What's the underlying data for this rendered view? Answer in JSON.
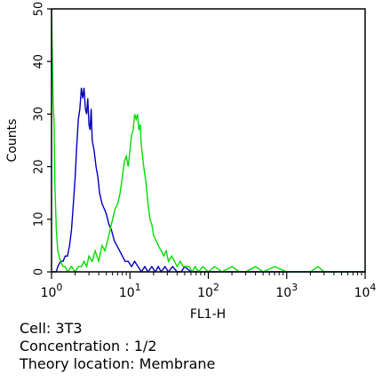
{
  "chart_data": {
    "type": "line",
    "xlabel": "FL1-H",
    "ylabel": "Counts",
    "x_scale": "log",
    "xlim": [
      1,
      10000
    ],
    "ylim": [
      0,
      50
    ],
    "grid": false,
    "x_ticks": [
      {
        "base": "10",
        "exp": "0",
        "value": 1
      },
      {
        "base": "10",
        "exp": "1",
        "value": 10
      },
      {
        "base": "10",
        "exp": "2",
        "value": 100
      },
      {
        "base": "10",
        "exp": "3",
        "value": 1000
      },
      {
        "base": "10",
        "exp": "4",
        "value": 10000
      }
    ],
    "y_ticks": [
      "0",
      "10",
      "20",
      "30",
      "40",
      "50"
    ],
    "series": [
      {
        "color": "#0000bb",
        "x": [
          1.0,
          1.05,
          1.1,
          1.15,
          1.2,
          1.3,
          1.4,
          1.5,
          1.6,
          1.7,
          1.8,
          1.9,
          2.0,
          2.1,
          2.2,
          2.3,
          2.4,
          2.5,
          2.6,
          2.7,
          2.8,
          2.9,
          3.0,
          3.1,
          3.2,
          3.3,
          3.5,
          3.7,
          3.9,
          4.1,
          4.4,
          4.7,
          5.0,
          5.4,
          5.8,
          6.3,
          6.8,
          7.4,
          8.0,
          8.7,
          9.5,
          10.5,
          11.5,
          12.7,
          14.0,
          15.5,
          17,
          19,
          21,
          23,
          25,
          28,
          31,
          35,
          40,
          45,
          50,
          60,
          70,
          80,
          90,
          100,
          120,
          140,
          160,
          180,
          200,
          250,
          300,
          400,
          500,
          700,
          1000,
          1500,
          2000,
          3000,
          5000,
          10000
        ],
        "y": [
          0,
          0,
          0,
          0,
          1,
          2,
          2,
          3,
          3,
          5,
          8,
          13,
          18,
          24,
          29,
          31,
          35,
          33,
          35,
          31,
          30,
          33,
          28,
          27,
          31,
          25,
          23,
          20,
          18,
          15,
          13,
          12,
          11,
          9,
          8,
          6,
          5,
          4,
          3,
          2,
          2,
          1,
          2,
          1,
          0,
          1,
          0,
          1,
          0,
          1,
          0,
          1,
          0,
          1,
          0,
          0,
          1,
          0,
          0,
          0,
          0,
          0,
          0,
          0,
          0,
          0,
          0,
          0,
          0,
          0,
          0,
          0,
          0,
          0,
          0,
          0,
          0,
          0
        ]
      },
      {
        "color": "#00dd00",
        "x": [
          1.0,
          1.02,
          1.05,
          1.08,
          1.1,
          1.15,
          1.2,
          1.3,
          1.4,
          1.5,
          1.6,
          1.8,
          2.0,
          2.2,
          2.4,
          2.6,
          2.8,
          3.0,
          3.3,
          3.6,
          4.0,
          4.4,
          4.8,
          5.2,
          5.6,
          6.0,
          6.5,
          7.0,
          7.5,
          8.0,
          8.5,
          9.0,
          9.5,
          10.0,
          10.5,
          11.0,
          11.5,
          12.0,
          12.5,
          13.0,
          13.5,
          14.0,
          15.0,
          16.0,
          17.0,
          18.0,
          19.0,
          20.0,
          21.5,
          23,
          25,
          27,
          29,
          31,
          34,
          37,
          40,
          44,
          48,
          52,
          57,
          62,
          68,
          75,
          85,
          100,
          120,
          150,
          200,
          250,
          300,
          400,
          500,
          700,
          1000,
          1500,
          2000,
          2500,
          3000,
          4000,
          5000,
          7000,
          10000
        ],
        "y": [
          50,
          42,
          32,
          28,
          17,
          8,
          4,
          2,
          1,
          1,
          0,
          1,
          0,
          1,
          1,
          2,
          1,
          3,
          2,
          4,
          2,
          5,
          4,
          6,
          8,
          10,
          12,
          13,
          15,
          18,
          21,
          22,
          20,
          23,
          26,
          27,
          30,
          29,
          30,
          27,
          28,
          24,
          20,
          17,
          13,
          10,
          9,
          7,
          6,
          5,
          4,
          3,
          4,
          2,
          3,
          2,
          1,
          2,
          1,
          1,
          1,
          0,
          1,
          0,
          1,
          0,
          1,
          0,
          1,
          0,
          0,
          1,
          0,
          1,
          0,
          0,
          0,
          1,
          0,
          0,
          0,
          0,
          0
        ]
      }
    ]
  },
  "caption": {
    "cell": "Cell: 3T3",
    "concentration": "Concentration : 1/2",
    "theory_location": "Theory location: Membrane"
  }
}
